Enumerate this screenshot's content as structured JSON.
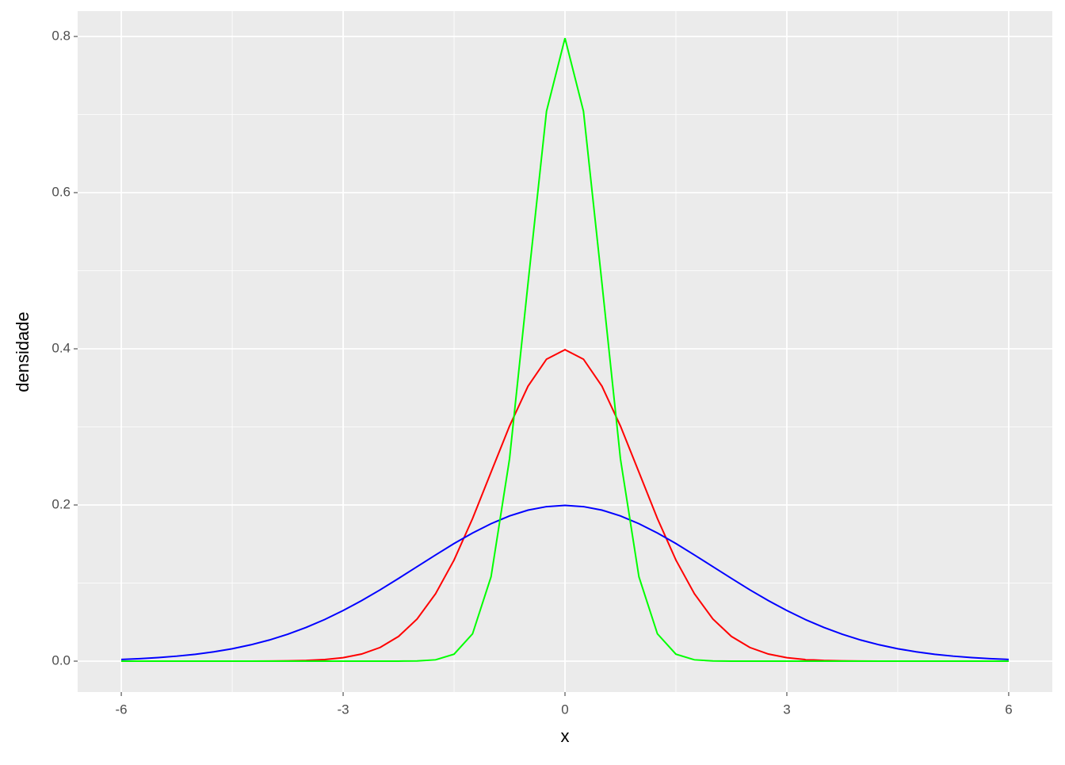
{
  "chart_data": {
    "type": "line",
    "x_label": "x",
    "y_label": "densidade",
    "x": [
      -6,
      -5.75,
      -5.5,
      -5.25,
      -5,
      -4.75,
      -4.5,
      -4.25,
      -4,
      -3.75,
      -3.5,
      -3.25,
      -3,
      -2.75,
      -2.5,
      -2.25,
      -2,
      -1.75,
      -1.5,
      -1.25,
      -1,
      -0.75,
      -0.5,
      -0.25,
      0,
      0.25,
      0.5,
      0.75,
      1,
      1.25,
      1.5,
      1.75,
      2,
      2.25,
      2.5,
      2.75,
      3,
      3.25,
      3.5,
      3.75,
      4,
      4.25,
      4.5,
      4.75,
      5,
      5.25,
      5.5,
      5.75,
      6
    ],
    "series": [
      {
        "color": "#ff0000",
        "values": [
          0,
          0,
          0,
          0,
          0,
          0,
          0,
          0,
          0.0001,
          0.0004,
          0.0009,
          0.002,
          0.0044,
          0.0091,
          0.0175,
          0.0317,
          0.054,
          0.0863,
          0.1295,
          0.1826,
          0.242,
          0.3011,
          0.3521,
          0.3867,
          0.3989,
          0.3867,
          0.3521,
          0.3011,
          0.242,
          0.1826,
          0.1295,
          0.0863,
          0.054,
          0.0317,
          0.0175,
          0.0091,
          0.0044,
          0.002,
          0.0009,
          0.0004,
          0.0001,
          0,
          0,
          0,
          0,
          0,
          0,
          0,
          0
        ]
      },
      {
        "color": "#0000ff",
        "values": [
          0.0022,
          0.0032,
          0.0046,
          0.0064,
          0.0088,
          0.0119,
          0.0159,
          0.0209,
          0.027,
          0.0344,
          0.0432,
          0.0533,
          0.0648,
          0.0775,
          0.0913,
          0.106,
          0.121,
          0.136,
          0.1506,
          0.1641,
          0.176,
          0.186,
          0.1934,
          0.1979,
          0.1995,
          0.1979,
          0.1934,
          0.186,
          0.176,
          0.1641,
          0.1506,
          0.136,
          0.121,
          0.106,
          0.0913,
          0.0775,
          0.0648,
          0.0533,
          0.0432,
          0.0344,
          0.027,
          0.0209,
          0.0159,
          0.0119,
          0.0088,
          0.0064,
          0.0046,
          0.0032,
          0.0022
        ]
      },
      {
        "color": "#00ff00",
        "values": [
          0,
          0,
          0,
          0,
          0,
          0,
          0,
          0,
          0,
          0,
          0,
          0,
          0,
          0,
          0,
          0,
          0.0003,
          0.0017,
          0.0089,
          0.035,
          0.108,
          0.259,
          0.4839,
          0.7042,
          0.7979,
          0.7042,
          0.4839,
          0.259,
          0.108,
          0.035,
          0.0089,
          0.0017,
          0.0003,
          0,
          0,
          0,
          0,
          0,
          0,
          0,
          0,
          0,
          0,
          0,
          0,
          0,
          0,
          0,
          0
        ]
      }
    ],
    "xlim": [
      -6.59,
      6.59
    ],
    "ylim": [
      -0.0396,
      0.8325
    ],
    "xticks": [
      -6,
      -3,
      0,
      3,
      6
    ],
    "yticks": [
      {
        "value": 0,
        "label": "0.0"
      },
      {
        "value": 0.2,
        "label": "0.2"
      },
      {
        "value": 0.4,
        "label": "0.4"
      },
      {
        "value": 0.6,
        "label": "0.6"
      },
      {
        "value": 0.8,
        "label": "0.8"
      }
    ],
    "grid": true
  }
}
